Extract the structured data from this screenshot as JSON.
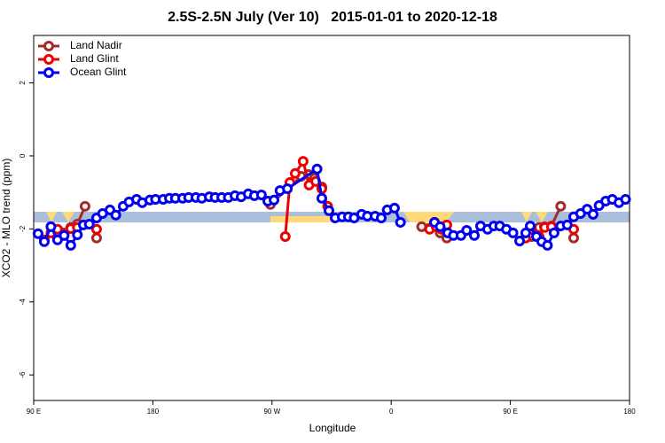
{
  "chart_data": {
    "type": "line",
    "title": "2.5S-2.5N July (Ver 10)   2015-01-01 to 2020-12-18",
    "xlabel": "Longitude",
    "ylabel": "XCO2 - MLO trend (ppm)",
    "xlim": [
      90,
      540
    ],
    "ylim": [
      -6.7,
      3.3
    ],
    "xticks": [
      {
        "value": 90,
        "label": "90 E"
      },
      180,
      {
        "value": 270,
        "label": "90 W"
      },
      {
        "value": 360,
        "label": "0"
      },
      {
        "value": 450,
        "label": "90 E"
      },
      {
        "value": 540,
        "label": "180"
      }
    ],
    "yticks": [
      2,
      0,
      -2,
      -4,
      -6
    ],
    "legend": "top-left",
    "series": [
      {
        "name": "Land Nadir",
        "color": "#a52a2a",
        "x": [
          103,
          108,
          113,
          118,
          123,
          128.8,
          null,
          137.5,
          null,
          268.8,
          292,
          297.6,
          302,
          307.6,
          null,
          383,
          392.7,
          397,
          402,
          null,
          466,
          471.7,
          475.7,
          481,
          488,
          null,
          497.8
        ],
        "values": [
          -1.94,
          -2.11,
          -2.11,
          -1.96,
          -1.87,
          -1.38,
          null,
          -2.25,
          null,
          -1.33,
          -0.56,
          -0.51,
          -0.61,
          -0.85,
          null,
          -1.94,
          -1.82,
          -2.11,
          -2.25,
          null,
          -2.21,
          -1.96,
          -1.94,
          -1.92,
          -1.38,
          null,
          -2.25
        ]
      },
      {
        "name": "Land Glint",
        "color": "#ee0000",
        "x": [
          98,
          103,
          108,
          113,
          118,
          123,
          null,
          137.5,
          null,
          280,
          283.5,
          287.5,
          293.5,
          298,
          303,
          307.6,
          312,
          null,
          389,
          394,
          398,
          402,
          null,
          461.6,
          466,
          471.7,
          476,
          481,
          null,
          497.8
        ],
        "values": [
          -2.3,
          -2.11,
          -2.01,
          -2.18,
          -1.99,
          -1.96,
          null,
          -2.01,
          null,
          -2.21,
          -0.73,
          -0.48,
          -0.15,
          -0.8,
          -0.7,
          -0.9,
          -1.38,
          null,
          -2.01,
          -1.94,
          -2.01,
          -1.89,
          null,
          -2.25,
          -2.01,
          -2.21,
          -1.96,
          -1.94,
          null,
          -2.01
        ]
      },
      {
        "name": "Ocean Glint",
        "color": "#0000ee",
        "x": [
          93.3,
          98,
          103,
          108,
          113,
          118,
          123,
          127.5,
          132,
          137.5,
          142,
          147.6,
          152,
          157.6,
          162,
          167.7,
          172,
          177.7,
          182,
          187.8,
          192.5,
          197,
          202.5,
          207,
          212.5,
          217,
          222.6,
          227,
          232,
          237,
          242,
          246.7,
          252,
          256.7,
          262,
          266.8,
          271.5,
          276,
          281.6,
          304,
          307.6,
          313,
          317.7,
          323,
          327.7,
          332,
          337.7,
          342,
          347.8,
          352.5,
          357,
          362.5,
          367,
          null,
          392.7,
          397,
          402.7,
          407,
          412.7,
          417,
          422.8,
          427.5,
          432.8,
          437.5,
          442,
          447,
          452,
          457,
          461.6,
          465,
          469.7,
          473.7,
          478,
          483,
          488,
          493,
          497.8,
          503,
          508,
          512.5,
          517,
          522,
          527,
          532,
          537
        ],
        "values": [
          -2.13,
          -2.35,
          -1.94,
          -2.3,
          -2.18,
          -2.45,
          -2.16,
          -1.89,
          -1.87,
          -1.7,
          -1.58,
          -1.48,
          -1.62,
          -1.38,
          -1.26,
          -1.19,
          -1.28,
          -1.21,
          -1.19,
          -1.19,
          -1.16,
          -1.16,
          -1.16,
          -1.14,
          -1.14,
          -1.16,
          -1.12,
          -1.14,
          -1.14,
          -1.14,
          -1.09,
          -1.12,
          -1.04,
          -1.09,
          -1.07,
          -1.24,
          -1.21,
          -0.95,
          -0.9,
          -0.36,
          -1.16,
          -1.5,
          -1.7,
          -1.67,
          -1.67,
          -1.7,
          -1.6,
          -1.65,
          -1.65,
          -1.7,
          -1.48,
          -1.43,
          -1.82,
          null,
          -1.82,
          -1.94,
          -2.11,
          -2.18,
          -2.18,
          -2.04,
          -2.18,
          -1.92,
          -2.01,
          -1.92,
          -1.92,
          -2.01,
          -2.11,
          -2.33,
          -2.11,
          -1.92,
          -2.21,
          -2.35,
          -2.45,
          -2.11,
          -1.92,
          -1.89,
          -1.67,
          -1.58,
          -1.46,
          -1.6,
          -1.36,
          -1.24,
          -1.19,
          -1.28,
          -1.19
        ]
      }
    ]
  }
}
